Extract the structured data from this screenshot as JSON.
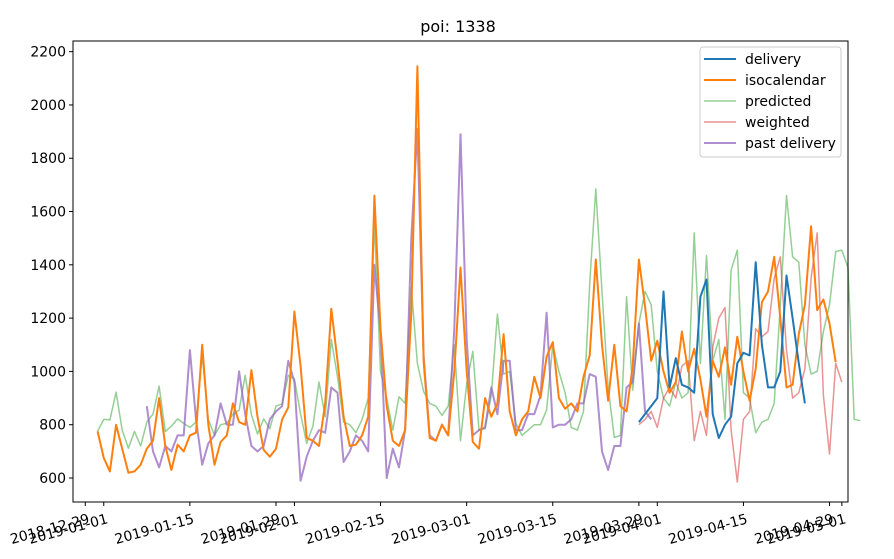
{
  "chart_data": {
    "type": "line",
    "title": "poi: 1338",
    "xlabel": "",
    "ylabel": "",
    "xlim": [
      "2018-12-27",
      "2019-05-02"
    ],
    "ylim": [
      510,
      2240
    ],
    "grid": false,
    "legend_position": "top-right",
    "x_ticks": [
      {
        "date": "2018-12-29",
        "label": "2018-12-29"
      },
      {
        "date": "2019-01-01",
        "label": "2019-01-01"
      },
      {
        "date": "2019-01-15",
        "label": "2019-01-15"
      },
      {
        "date": "2019-01-29",
        "label": "2019-01-29"
      },
      {
        "date": "2019-02-01",
        "label": "2019-02-01"
      },
      {
        "date": "2019-02-15",
        "label": "2019-02-15"
      },
      {
        "date": "2019-03-01",
        "label": "2019-03-01"
      },
      {
        "date": "2019-03-15",
        "label": "2019-03-15"
      },
      {
        "date": "2019-03-29",
        "label": "2019-03-29"
      },
      {
        "date": "2019-04-01",
        "label": "2019-04-01"
      },
      {
        "date": "2019-04-15",
        "label": "2019-04-15"
      },
      {
        "date": "2019-04-29",
        "label": "2019-04-29"
      },
      {
        "date": "2019-05-01",
        "label": "2019-05-01"
      }
    ],
    "y_ticks": [
      600,
      800,
      1000,
      1200,
      1400,
      1600,
      1800,
      2000,
      2200
    ],
    "series": [
      {
        "name": "predicted",
        "color": "#2ca02c",
        "opacity": 0.5,
        "line_width": 1.5,
        "start_date": "2018-12-31",
        "values": [
          775,
          820,
          818,
          922,
          780,
          712,
          775,
          720,
          810,
          840,
          945,
          775,
          795,
          822,
          805,
          790,
          810,
          1060,
          820,
          760,
          800,
          805,
          840,
          855,
          985,
          838,
          765,
          822,
          785,
          870,
          878,
          985,
          972,
          840,
          730,
          795,
          960,
          830,
          1120,
          980,
          810,
          800,
          770,
          820,
          900,
          1560,
          1000,
          900,
          780,
          905,
          880,
          1315,
          1030,
          925,
          880,
          870,
          835,
          870,
          1100,
          740,
          955,
          1075,
          780,
          785,
          910,
          1215,
          990,
          1000,
          805,
          760,
          780,
          800,
          800,
          855,
          1100,
          1000,
          920,
          790,
          780,
          850,
          1330,
          1685,
          1300,
          940,
          752,
          760,
          1280,
          930,
          1180,
          1300,
          1250,
          1000,
          900,
          870,
          960,
          900,
          920,
          1520,
          1030,
          1435,
          1040,
          1120,
          820,
          1380,
          1455,
          920,
          900,
          770,
          810,
          820,
          880,
          1250,
          1660,
          1430,
          1410,
          1100,
          990,
          1000,
          1150,
          1250,
          1450,
          1455,
          1390,
          820,
          815
        ],
        "y_values": [
          775,
          820,
          818,
          922,
          780,
          712,
          775,
          720,
          810,
          840,
          945,
          775,
          795,
          822,
          805,
          790,
          810,
          1060,
          820,
          760,
          800,
          805,
          840,
          855,
          985,
          838,
          765,
          822,
          785,
          870,
          878,
          985,
          972,
          840,
          730,
          795,
          960,
          830,
          1120,
          980,
          810,
          800,
          770,
          820,
          900,
          1560,
          1000,
          900,
          780,
          905,
          880,
          1315,
          1030,
          925,
          880,
          870,
          835,
          870,
          1100,
          740,
          955,
          1075,
          780,
          785,
          910,
          1215,
          990,
          1000,
          805,
          760,
          780,
          800,
          800,
          855,
          1100,
          1000,
          920,
          790,
          780,
          850,
          1330,
          1685,
          1300,
          940,
          752,
          760,
          1280,
          930,
          1180,
          1300,
          1250,
          1000,
          900,
          870,
          960,
          900,
          920,
          1520,
          1030,
          1435,
          1040,
          1120,
          820,
          1380,
          1455,
          920,
          900,
          770,
          810,
          820,
          880,
          1250,
          1660,
          1430,
          1410,
          1100,
          990,
          1000,
          1150,
          1250,
          1450,
          1455,
          1390,
          820,
          815
        ]
      },
      {
        "name": "weighted",
        "color": "#d62728",
        "opacity": 0.5,
        "line_width": 1.5,
        "start_date": "2019-03-29",
        "values": [
          800,
          820,
          850,
          790,
          900,
          940,
          900,
          1020,
          1040,
          740,
          850,
          760,
          1090,
          1200,
          1240,
          780,
          585,
          820,
          850,
          1160,
          1130,
          1150,
          1350,
          1430,
          1080,
          900,
          920,
          1010,
          1350,
          1520,
          910,
          690,
          1030,
          960
        ]
      },
      {
        "name": "past delivery",
        "color": "#9467bd",
        "opacity": 0.75,
        "line_width": 2,
        "start_date": "2019-01-08",
        "values": [
          870,
          700,
          640,
          720,
          700,
          760,
          760,
          1080,
          820,
          650,
          730,
          760,
          880,
          800,
          800,
          1000,
          840,
          720,
          700,
          720,
          820,
          850,
          870,
          1040,
          960,
          590,
          680,
          740,
          780,
          770,
          940,
          920,
          660,
          700,
          760,
          740,
          700,
          1400,
          1150,
          600,
          710,
          640,
          780,
          1500,
          1910,
          1060,
          760,
          740,
          800,
          760,
          1160,
          1890,
          1120,
          760,
          780,
          790,
          940,
          840,
          1040,
          1040,
          780,
          780,
          840,
          840,
          910,
          1220,
          790,
          800,
          800,
          820,
          880,
          880,
          990,
          980,
          700,
          630,
          720,
          720,
          940,
          960,
          1180,
          850,
          820
        ]
      },
      {
        "name": "isocalendar",
        "color": "#ff7f0e",
        "opacity": 1,
        "line_width": 2,
        "start_date": "2018-12-31",
        "values": [
          775,
          675,
          625,
          800,
          710,
          620,
          625,
          650,
          710,
          740,
          900,
          720,
          630,
          725,
          700,
          760,
          770,
          1100,
          800,
          650,
          735,
          760,
          880,
          810,
          800,
          1005,
          830,
          705,
          680,
          710,
          820,
          865,
          1225,
          1020,
          750,
          740,
          720,
          880,
          1235,
          1040,
          830,
          720,
          725,
          760,
          830,
          1660,
          1160,
          870,
          740,
          720,
          780,
          1220,
          2145,
          1040,
          750,
          740,
          800,
          760,
          1000,
          1390,
          1000,
          735,
          710,
          900,
          830,
          880,
          1140,
          850,
          760,
          820,
          850,
          980,
          900,
          1055,
          1110,
          900,
          860,
          880,
          850,
          980,
          1060,
          1420,
          1100,
          890,
          1100,
          870,
          850,
          1020,
          1420,
          1245,
          1040,
          1115,
          1000,
          920,
          960,
          1150,
          1000,
          1085,
          970,
          830,
          1040,
          980,
          1090,
          950,
          1130,
          1000,
          890,
          1010,
          1260,
          1300,
          1430,
          1200,
          940,
          950,
          1140,
          1250,
          1545,
          1230,
          1270,
          1180,
          1035
        ]
      },
      {
        "name": "delivery",
        "color": "#1f77b4",
        "opacity": 1,
        "line_width": 2,
        "start_date": "2019-03-29",
        "values": [
          810,
          840,
          870,
          900,
          1300,
          940,
          1050,
          950,
          940,
          920,
          1280,
          1345,
          840,
          750,
          800,
          830,
          1030,
          1070,
          1060,
          1410,
          1100,
          940,
          940,
          1000,
          1360,
          1200,
          1030,
          880
        ]
      }
    ],
    "legend_order": [
      "delivery",
      "isocalendar",
      "predicted",
      "weighted",
      "past delivery"
    ]
  }
}
